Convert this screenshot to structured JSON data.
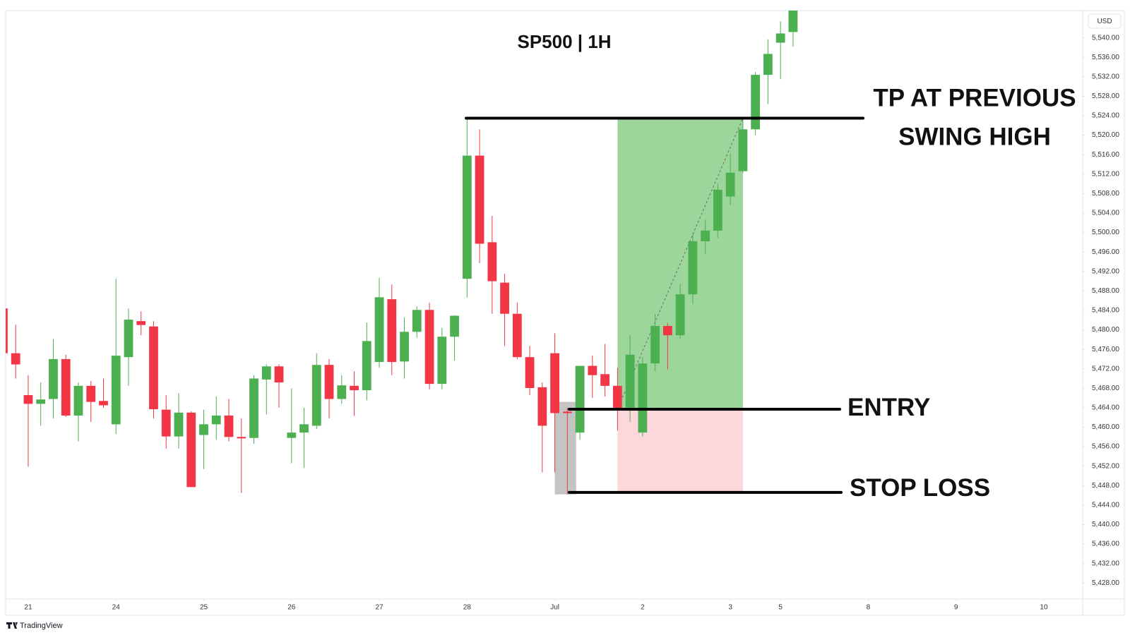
{
  "chart_data": {
    "type": "candlestick",
    "title": "SP500 | 1H",
    "currency": "USD",
    "watermark": "TradingView",
    "up_color": "#4caf50",
    "down_color": "#f23645",
    "grid": false,
    "open": [
      5484.4,
      5475.2,
      5466.6,
      5464.8,
      5465.8,
      5474.0,
      5462.4,
      5468.5,
      5465.4,
      5460.6,
      5474.4,
      5481.8,
      5480.7,
      5463.6,
      5458.1,
      5463.0,
      5458.4,
      5460.6,
      5462.4,
      5458.0,
      5457.8,
      5469.8,
      5472.5,
      5457.8,
      5458.9,
      5460.3,
      5472.8,
      5465.8,
      5468.5,
      5467.6,
      5473.4,
      5486.3,
      5473.5,
      5479.6,
      5484.1,
      5468.9,
      5478.6,
      5490.5,
      5515.8,
      5498.0,
      5489.7,
      5483.3,
      5474.4,
      5468.2,
      5475.2,
      5463.2,
      5458.9,
      5472.6,
      5470.9,
      5468.5,
      5464.0,
      5458.9,
      5473.1,
      5480.8,
      5478.9,
      5487.3,
      5498.2,
      5500.4,
      5507.4,
      5512.6,
      5521.2,
      5532.4,
      5539.0,
      5541.2
    ],
    "high": [
      5484.4,
      5481.1,
      5470.7,
      5469.2,
      5478.1,
      5474.9,
      5469.2,
      5469.5,
      5470.0,
      5490.5,
      5484.4,
      5483.8,
      5481.8,
      5466.6,
      5467.0,
      5463.3,
      5463.6,
      5466.3,
      5465.8,
      5461.8,
      5470.7,
      5472.9,
      5472.9,
      5468.0,
      5464.0,
      5475.2,
      5474.0,
      5470.7,
      5471.5,
      5481.5,
      5490.7,
      5489.3,
      5482.6,
      5484.8,
      5485.6,
      5480.4,
      5483.0,
      5523.4,
      5521.2,
      5503.4,
      5491.5,
      5485.6,
      5476.7,
      5469.2,
      5479.3,
      5464.0,
      5472.6,
      5474.7,
      5477.1,
      5472.2,
      5478.9,
      5474.4,
      5483.3,
      5481.4,
      5489.4,
      5499.6,
      5502.6,
      5510.0,
      5516.3,
      5523.4,
      5533.0,
      5539.7,
      5543.4,
      5546.4
    ],
    "low": [
      5475.2,
      5470.0,
      5451.9,
      5460.3,
      5461.8,
      5462.1,
      5457.1,
      5461.1,
      5464.0,
      5458.6,
      5468.5,
      5478.9,
      5461.8,
      5455.6,
      5455.6,
      5447.7,
      5451.4,
      5457.4,
      5457.1,
      5446.5,
      5456.6,
      5462.6,
      5464.0,
      5452.6,
      5451.7,
      5459.6,
      5461.8,
      5464.8,
      5462.3,
      5465.5,
      5472.2,
      5470.7,
      5470.0,
      5478.4,
      5467.8,
      5467.8,
      5473.7,
      5486.6,
      5493.7,
      5483.3,
      5476.7,
      5474.0,
      5466.6,
      5450.7,
      5450.7,
      5446.2,
      5457.4,
      5466.0,
      5466.3,
      5459.3,
      5461.1,
      5458.1,
      5471.5,
      5471.9,
      5478.1,
      5485.3,
      5495.6,
      5498.9,
      5505.6,
      5512.3,
      5520.0,
      5526.4,
      5531.5,
      5538.2
    ],
    "close": [
      5475.2,
      5472.9,
      5464.8,
      5465.7,
      5474.0,
      5462.4,
      5468.5,
      5465.2,
      5464.5,
      5474.7,
      5482.1,
      5481.0,
      5463.7,
      5458.1,
      5463.0,
      5447.7,
      5460.6,
      5462.4,
      5458.0,
      5457.7,
      5470.0,
      5472.5,
      5469.2,
      5458.9,
      5460.6,
      5472.8,
      5465.8,
      5468.6,
      5467.6,
      5477.7,
      5486.7,
      5473.4,
      5479.6,
      5484.1,
      5468.9,
      5478.6,
      5482.9,
      5515.8,
      5497.7,
      5490.0,
      5483.3,
      5474.4,
      5468.05,
      5460.3,
      5462.9,
      5462.9,
      5472.6,
      5470.7,
      5468.5,
      5464.0,
      5474.9,
      5473.1,
      5480.8,
      5478.9,
      5487.3,
      5498.2,
      5500.4,
      5508.8,
      5512.3,
      5521.2,
      5532.4,
      5536.7,
      5540.9,
      5545.6
    ],
    "xlim": [
      0.2,
      86.1
    ],
    "xticks": [
      {
        "value": 2,
        "label": "21"
      },
      {
        "value": 9,
        "label": "24"
      },
      {
        "value": 16,
        "label": "25"
      },
      {
        "value": 23,
        "label": "26"
      },
      {
        "value": 30,
        "label": "27"
      },
      {
        "value": 37,
        "label": "28"
      },
      {
        "value": 44,
        "label": "Jul"
      },
      {
        "value": 51,
        "label": "2"
      },
      {
        "value": 58,
        "label": "3"
      },
      {
        "value": 62,
        "label": "5"
      },
      {
        "value": 69,
        "label": "8"
      },
      {
        "value": 76,
        "label": "9"
      },
      {
        "value": 83,
        "label": "10"
      }
    ],
    "ylim": [
      5424.7,
      5545.6
    ],
    "yticks": [
      {
        "value": 5428,
        "label": "5,428.00"
      },
      {
        "value": 5432,
        "label": "5,432.00"
      },
      {
        "value": 5436,
        "label": "5,436.00"
      },
      {
        "value": 5440,
        "label": "5,440.00"
      },
      {
        "value": 5444,
        "label": "5,444.00"
      },
      {
        "value": 5448,
        "label": "5,448.00"
      },
      {
        "value": 5452,
        "label": "5,452.00"
      },
      {
        "value": 5456,
        "label": "5,456.00"
      },
      {
        "value": 5460,
        "label": "5,460.00"
      },
      {
        "value": 5464,
        "label": "5,464.00"
      },
      {
        "value": 5468,
        "label": "5,468.00"
      },
      {
        "value": 5472,
        "label": "5,472.00"
      },
      {
        "value": 5476,
        "label": "5,476.00"
      },
      {
        "value": 5480,
        "label": "5,480.00"
      },
      {
        "value": 5484,
        "label": "5,484.00"
      },
      {
        "value": 5488,
        "label": "5,488.00"
      },
      {
        "value": 5492,
        "label": "5,492.00"
      },
      {
        "value": 5496,
        "label": "5,496.00"
      },
      {
        "value": 5500,
        "label": "5,500.00"
      },
      {
        "value": 5504,
        "label": "5,504.00"
      },
      {
        "value": 5508,
        "label": "5,508.00"
      },
      {
        "value": 5512,
        "label": "5,512.00"
      },
      {
        "value": 5516,
        "label": "5,516.00"
      },
      {
        "value": 5520,
        "label": "5,520.00"
      },
      {
        "value": 5524,
        "label": "5,524.00"
      },
      {
        "value": 5528,
        "label": "5,528.00"
      },
      {
        "value": 5532,
        "label": "5,532.00"
      },
      {
        "value": 5536,
        "label": "5,536.00"
      },
      {
        "value": 5540,
        "label": "5,540.00"
      }
    ],
    "position": {
      "start": 49,
      "end": 59,
      "entry": 5463.7,
      "take_profit": 5523.5,
      "stop_loss": 5446.6
    },
    "highlight": {
      "start": 44,
      "end": 45.7,
      "top": 5465.2,
      "bottom": 5446.2
    },
    "annotations": {
      "take_profit": [
        "TP AT PREVIOUS",
        "SWING HIGH"
      ],
      "entry": "ENTRY",
      "stop_loss": "STOP LOSS"
    }
  }
}
